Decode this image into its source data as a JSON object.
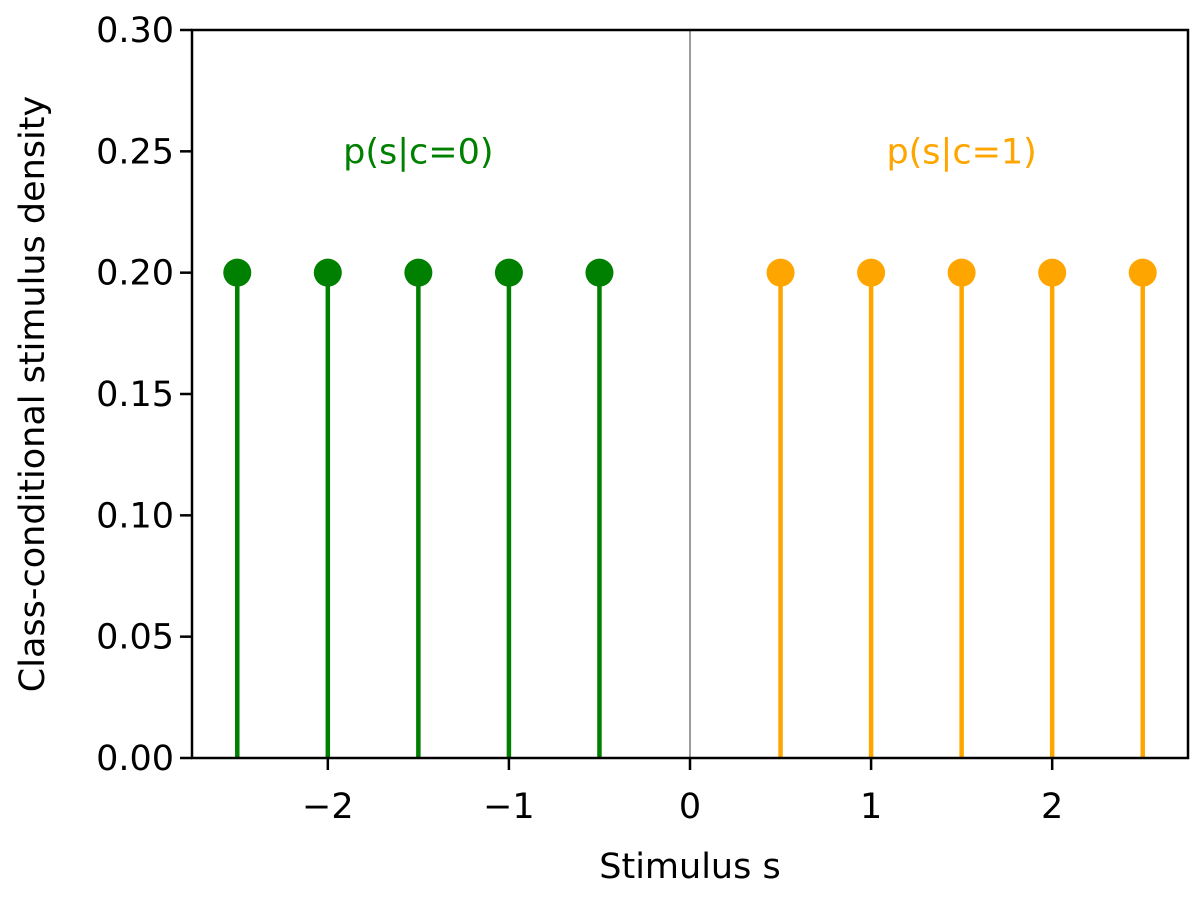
{
  "chart_data": {
    "type": "stem",
    "xlabel": "Stimulus s",
    "ylabel": "Class-conditional stimulus density",
    "xlim": [
      -2.75,
      2.75
    ],
    "ylim": [
      0,
      0.3
    ],
    "xticks": [
      {
        "value": -2,
        "label": "−2"
      },
      {
        "value": -1,
        "label": "−1"
      },
      {
        "value": 0,
        "label": "0"
      },
      {
        "value": 1,
        "label": "1"
      },
      {
        "value": 2,
        "label": "2"
      }
    ],
    "yticks": [
      {
        "value": 0.0,
        "label": "0.00"
      },
      {
        "value": 0.05,
        "label": "0.05"
      },
      {
        "value": 0.1,
        "label": "0.10"
      },
      {
        "value": 0.15,
        "label": "0.15"
      },
      {
        "value": 0.2,
        "label": "0.20"
      },
      {
        "value": 0.25,
        "label": "0.25"
      },
      {
        "value": 0.3,
        "label": "0.30"
      }
    ],
    "vline": {
      "x": 0,
      "color": "#666666"
    },
    "series": [
      {
        "name": "p(s|c=0)",
        "color": "#008000",
        "x": [
          -2.5,
          -2.0,
          -1.5,
          -1.0,
          -0.5
        ],
        "y": [
          0.2,
          0.2,
          0.2,
          0.2,
          0.2
        ]
      },
      {
        "name": "p(s|c=1)",
        "color": "#ffa500",
        "x": [
          0.5,
          1.0,
          1.5,
          2.0,
          2.5
        ],
        "y": [
          0.2,
          0.2,
          0.2,
          0.2,
          0.2
        ]
      }
    ],
    "annotations": [
      {
        "text": "p(s|c=0)",
        "x": -1.5,
        "y": 0.25,
        "color": "#008000"
      },
      {
        "text": "p(s|c=1)",
        "x": 1.5,
        "y": 0.25,
        "color": "#ffa500"
      }
    ],
    "grid": false,
    "legend": "none"
  }
}
